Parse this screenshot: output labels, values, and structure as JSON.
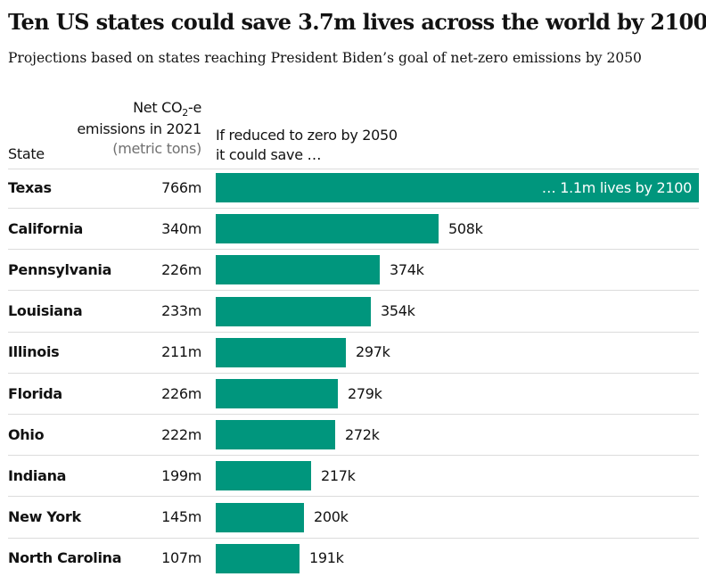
{
  "chart_data": {
    "type": "bar",
    "orientation": "horizontal",
    "title": "Ten US states could save 3.7m lives across the world by 2100",
    "subtitle": "Projections based on states reaching President Biden’s goal of net-zero emissions by 2050",
    "headers": {
      "state": "State",
      "emissions_line1": "Net CO",
      "emissions_sub": "2",
      "emissions_line1_end": "-e",
      "emissions_line2": "emissions in 2021",
      "emissions_units": "(metric tons)",
      "save_line1": "If reduced to zero by 2050",
      "save_line2": "it could save …"
    },
    "categories": [
      "Texas",
      "California",
      "Pennsylvania",
      "Louisiana",
      "Illinois",
      "Florida",
      "Ohio",
      "Indiana",
      "New York",
      "North Carolina"
    ],
    "emissions_labels": [
      "766m",
      "340m",
      "226m",
      "233m",
      "211m",
      "226m",
      "222m",
      "199m",
      "145m",
      "107m"
    ],
    "values": [
      1100000,
      508000,
      374000,
      354000,
      297000,
      279000,
      272000,
      217000,
      200000,
      191000
    ],
    "value_labels": [
      "… 1.1m lives by 2100",
      "508k",
      "374k",
      "354k",
      "297k",
      "279k",
      "272k",
      "217k",
      "200k",
      "191k"
    ],
    "bar_color": "#00967d",
    "xlim": [
      0,
      1100000
    ],
    "grid": false
  }
}
